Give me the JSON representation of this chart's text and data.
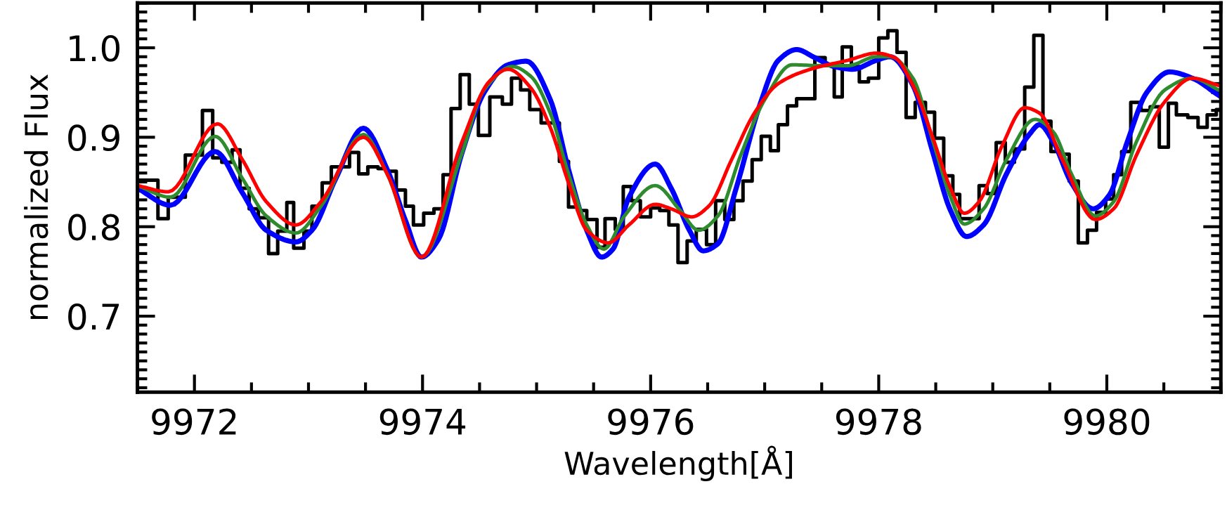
{
  "chart_data": {
    "type": "line",
    "xlabel": "Wavelength[Å]",
    "ylabel": "normalized Flux",
    "xlim": [
      9971.5,
      9981.0
    ],
    "ylim": [
      0.615,
      1.05
    ],
    "xticks": [
      9972,
      9974,
      9976,
      9978,
      9980
    ],
    "yticks": [
      {
        "value": 0.7,
        "label": "0.7"
      },
      {
        "value": 0.8,
        "label": "0.8"
      },
      {
        "value": 0.9,
        "label": "0.9"
      },
      {
        "value": 1.0,
        "label": "1.0"
      }
    ],
    "grid": false,
    "legend": false,
    "series": [
      {
        "type": "step",
        "color": "#000000",
        "x": [
          9971.5,
          9971.68,
          9971.77,
          9971.92,
          9972.07,
          9972.16,
          9972.24,
          9972.33,
          9972.4,
          9972.48,
          9972.56,
          9972.65,
          9972.73,
          9972.81,
          9972.87,
          9972.96,
          9973.03,
          9973.12,
          9973.2,
          9973.36,
          9973.44,
          9973.52,
          9973.61,
          9973.69,
          9973.77,
          9973.85,
          9973.92,
          9974.01,
          9974.1,
          9974.18,
          9974.25,
          9974.33,
          9974.41,
          9974.49,
          9974.59,
          9974.7,
          9974.78,
          9974.86,
          9974.94,
          9975.04,
          9975.2,
          9975.28,
          9975.36,
          9975.44,
          9975.53,
          9975.6,
          9975.69,
          9975.76,
          9975.83,
          9975.91,
          9976.0,
          9976.08,
          9976.16,
          9976.24,
          9976.32,
          9976.4,
          9976.49,
          9976.57,
          9976.65,
          9976.73,
          9976.81,
          9976.89,
          9976.97,
          9977.05,
          9977.12,
          9977.2,
          9977.28,
          9977.44,
          9977.53,
          9977.61,
          9977.68,
          9977.76,
          9977.83,
          9977.91,
          9978.0,
          9978.08,
          9978.16,
          9978.24,
          9978.32,
          9978.41,
          9978.49,
          9978.57,
          9978.65,
          9978.71,
          9978.88,
          9978.95,
          9979.03,
          9979.11,
          9979.19,
          9979.28,
          9979.36,
          9979.44,
          9979.51,
          9979.59,
          9979.67,
          9979.75,
          9979.83,
          9979.91,
          9979.99,
          9980.06,
          9980.13,
          9980.21,
          9980.3,
          9980.38,
          9980.46,
          9980.54,
          9980.61,
          9980.71,
          9980.8,
          9980.88,
          9980.96,
          9981.0
        ],
        "values": [
          0.852,
          0.809,
          0.833,
          0.88,
          0.93,
          0.877,
          0.872,
          0.886,
          0.843,
          0.82,
          0.81,
          0.77,
          0.795,
          0.827,
          0.776,
          0.795,
          0.823,
          0.849,
          0.867,
          0.883,
          0.859,
          0.867,
          0.865,
          0.862,
          0.841,
          0.823,
          0.802,
          0.815,
          0.82,
          0.858,
          0.932,
          0.97,
          0.937,
          0.902,
          0.945,
          0.937,
          0.966,
          0.953,
          0.931,
          0.916,
          0.873,
          0.822,
          0.818,
          0.808,
          0.777,
          0.809,
          0.797,
          0.845,
          0.829,
          0.811,
          0.821,
          0.818,
          0.802,
          0.76,
          0.784,
          0.797,
          0.78,
          0.829,
          0.808,
          0.829,
          0.851,
          0.875,
          0.901,
          0.885,
          0.914,
          0.935,
          0.943,
          0.989,
          0.981,
          0.945,
          1.001,
          0.979,
          0.962,
          0.966,
          1.011,
          1.019,
          0.995,
          0.922,
          0.939,
          0.928,
          0.899,
          0.857,
          0.836,
          0.809,
          0.846,
          0.837,
          0.894,
          0.872,
          0.887,
          0.956,
          1.014,
          0.918,
          0.884,
          0.881,
          0.851,
          0.782,
          0.796,
          0.816,
          0.831,
          0.858,
          0.884,
          0.939,
          0.93,
          0.934,
          0.889,
          0.938,
          0.925,
          0.922,
          0.911,
          0.925,
          0.931,
          0.931
        ]
      },
      {
        "color": "#0000ff",
        "x": [
          9971.5,
          9971.79,
          9972.18,
          9972.42,
          9972.63,
          9972.89,
          9973.03,
          9973.24,
          9973.48,
          9973.69,
          9973.85,
          9973.99,
          9974.14,
          9974.34,
          9974.54,
          9974.75,
          9974.91,
          9975.12,
          9975.28,
          9975.44,
          9975.57,
          9975.67,
          9975.81,
          9976.04,
          9976.18,
          9976.34,
          9976.46,
          9976.59,
          9976.75,
          9976.96,
          9977.12,
          9977.28,
          9977.44,
          9977.61,
          9977.77,
          9977.98,
          9978.1,
          9978.3,
          9978.47,
          9978.63,
          9978.77,
          9978.92,
          9979.12,
          9979.32,
          9979.41,
          9979.53,
          9979.69,
          9979.88,
          9980.02,
          9980.18,
          9980.35,
          9980.55,
          9980.75,
          9980.98
        ],
        "values": [
          0.843,
          0.824,
          0.884,
          0.838,
          0.796,
          0.783,
          0.796,
          0.854,
          0.91,
          0.864,
          0.807,
          0.766,
          0.786,
          0.88,
          0.95,
          0.981,
          0.985,
          0.942,
          0.864,
          0.796,
          0.766,
          0.775,
          0.833,
          0.87,
          0.843,
          0.796,
          0.773,
          0.781,
          0.843,
          0.937,
          0.986,
          0.998,
          0.989,
          0.979,
          0.976,
          0.986,
          0.99,
          0.958,
          0.885,
          0.818,
          0.789,
          0.802,
          0.859,
          0.903,
          0.914,
          0.895,
          0.849,
          0.82,
          0.835,
          0.895,
          0.95,
          0.973,
          0.966,
          0.947
        ]
      },
      {
        "color": "#2e8b2e",
        "x": [
          9971.5,
          9971.79,
          9972.18,
          9972.42,
          9972.63,
          9972.89,
          9973.11,
          9973.48,
          9973.69,
          9973.99,
          9974.34,
          9974.54,
          9974.79,
          9974.95,
          9975.12,
          9975.28,
          9975.44,
          9975.59,
          9975.77,
          9976.04,
          9976.26,
          9976.42,
          9976.59,
          9976.79,
          9977.0,
          9977.24,
          9977.49,
          9977.73,
          9977.98,
          9978.1,
          9978.3,
          9978.47,
          9978.63,
          9978.75,
          9978.92,
          9979.12,
          9979.37,
          9979.53,
          9979.69,
          9979.9,
          9980.06,
          9980.26,
          9980.51,
          9980.75,
          9980.98
        ],
        "values": [
          0.846,
          0.833,
          0.901,
          0.854,
          0.812,
          0.793,
          0.823,
          0.903,
          0.859,
          0.766,
          0.88,
          0.953,
          0.979,
          0.968,
          0.927,
          0.859,
          0.802,
          0.775,
          0.812,
          0.846,
          0.818,
          0.796,
          0.812,
          0.88,
          0.942,
          0.981,
          0.98,
          0.98,
          0.99,
          0.99,
          0.966,
          0.898,
          0.833,
          0.803,
          0.82,
          0.875,
          0.92,
          0.906,
          0.859,
          0.812,
          0.828,
          0.895,
          0.953,
          0.966,
          0.953
        ]
      },
      {
        "color": "#ff0000",
        "x": [
          9971.5,
          9971.77,
          9972.2,
          9972.42,
          9972.63,
          9972.89,
          9973.11,
          9973.48,
          9973.69,
          9973.99,
          9974.34,
          9974.59,
          9974.75,
          9974.95,
          9975.12,
          9975.28,
          9975.44,
          9975.63,
          9975.81,
          9976.04,
          9976.18,
          9976.36,
          9976.51,
          9976.71,
          9976.91,
          9977.12,
          9977.4,
          9977.73,
          9977.98,
          9978.14,
          9978.3,
          9978.47,
          9978.63,
          9978.75,
          9978.88,
          9979.08,
          9979.28,
          9979.41,
          9979.61,
          9979.9,
          9980.06,
          9980.26,
          9980.51,
          9980.75,
          9980.98
        ],
        "values": [
          0.846,
          0.839,
          0.915,
          0.875,
          0.828,
          0.802,
          0.828,
          0.9,
          0.859,
          0.766,
          0.893,
          0.963,
          0.976,
          0.955,
          0.911,
          0.849,
          0.796,
          0.782,
          0.802,
          0.825,
          0.82,
          0.811,
          0.823,
          0.875,
          0.927,
          0.96,
          0.976,
          0.986,
          0.994,
          0.989,
          0.958,
          0.901,
          0.843,
          0.815,
          0.828,
          0.89,
          0.933,
          0.927,
          0.875,
          0.808,
          0.82,
          0.88,
          0.94,
          0.966,
          0.958
        ]
      }
    ]
  }
}
